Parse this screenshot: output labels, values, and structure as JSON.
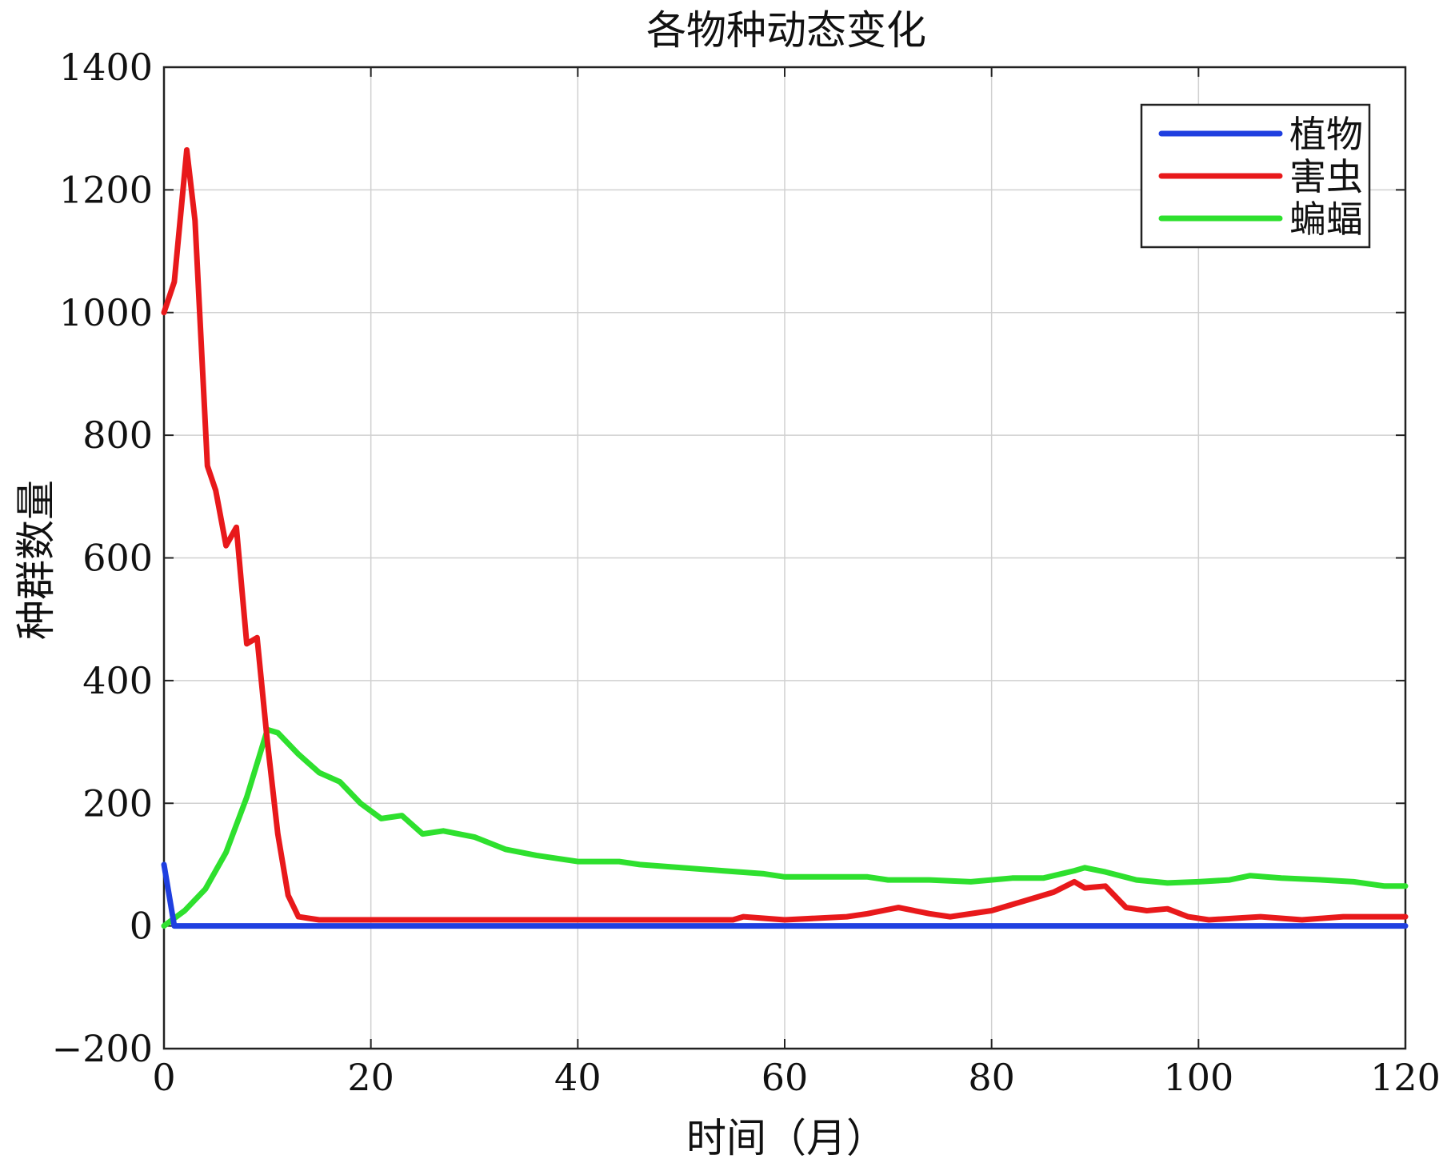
{
  "chart_data": {
    "type": "line",
    "title": "各物种动态变化",
    "xlabel": "时间（月）",
    "ylabel": "种群数量",
    "xlim": [
      0,
      120
    ],
    "ylim": [
      -200,
      1400
    ],
    "xticks": [
      0,
      20,
      40,
      60,
      80,
      100,
      120
    ],
    "yticks": [
      -200,
      0,
      200,
      400,
      600,
      800,
      1000,
      1200,
      1400
    ],
    "xtick_labels": [
      "0",
      "20",
      "40",
      "60",
      "80",
      "100",
      "120"
    ],
    "ytick_labels": [
      "−200",
      "0",
      "200",
      "400",
      "600",
      "800",
      "1000",
      "1200",
      "1400"
    ],
    "grid": true,
    "legend_position": "top-right",
    "series": [
      {
        "name": "植物",
        "color": "#1f3fe0",
        "points": [
          [
            0,
            100
          ],
          [
            1,
            0
          ],
          [
            120,
            0
          ]
        ]
      },
      {
        "name": "害虫",
        "color": "#e8191b",
        "points": [
          [
            0,
            1000
          ],
          [
            1,
            1050
          ],
          [
            2.2,
            1265
          ],
          [
            3,
            1150
          ],
          [
            4.2,
            750
          ],
          [
            5,
            710
          ],
          [
            6,
            620
          ],
          [
            7,
            650
          ],
          [
            8,
            460
          ],
          [
            9,
            470
          ],
          [
            10,
            300
          ],
          [
            11,
            150
          ],
          [
            12,
            50
          ],
          [
            13,
            15
          ],
          [
            15,
            10
          ],
          [
            30,
            10
          ],
          [
            55,
            10
          ],
          [
            56,
            15
          ],
          [
            60,
            10
          ],
          [
            66,
            15
          ],
          [
            68,
            20
          ],
          [
            71,
            30
          ],
          [
            74,
            20
          ],
          [
            76,
            15
          ],
          [
            80,
            25
          ],
          [
            84,
            45
          ],
          [
            86,
            55
          ],
          [
            88,
            72
          ],
          [
            89,
            62
          ],
          [
            91,
            65
          ],
          [
            93,
            30
          ],
          [
            95,
            25
          ],
          [
            97,
            28
          ],
          [
            99,
            15
          ],
          [
            101,
            10
          ],
          [
            106,
            15
          ],
          [
            110,
            10
          ],
          [
            114,
            15
          ],
          [
            120,
            15
          ]
        ]
      },
      {
        "name": "蝙蝠",
        "color": "#2ee02e",
        "points": [
          [
            0,
            0
          ],
          [
            2,
            25
          ],
          [
            4,
            60
          ],
          [
            6,
            120
          ],
          [
            8,
            210
          ],
          [
            10,
            320
          ],
          [
            11,
            315
          ],
          [
            13,
            280
          ],
          [
            15,
            250
          ],
          [
            17,
            235
          ],
          [
            19,
            200
          ],
          [
            21,
            175
          ],
          [
            23,
            180
          ],
          [
            25,
            150
          ],
          [
            27,
            155
          ],
          [
            30,
            145
          ],
          [
            33,
            125
          ],
          [
            36,
            115
          ],
          [
            40,
            105
          ],
          [
            44,
            105
          ],
          [
            46,
            100
          ],
          [
            50,
            95
          ],
          [
            54,
            90
          ],
          [
            58,
            85
          ],
          [
            60,
            80
          ],
          [
            64,
            80
          ],
          [
            68,
            80
          ],
          [
            70,
            75
          ],
          [
            74,
            75
          ],
          [
            78,
            72
          ],
          [
            82,
            78
          ],
          [
            85,
            78
          ],
          [
            88,
            90
          ],
          [
            89,
            95
          ],
          [
            91,
            88
          ],
          [
            94,
            75
          ],
          [
            97,
            70
          ],
          [
            100,
            72
          ],
          [
            103,
            75
          ],
          [
            105,
            82
          ],
          [
            108,
            78
          ],
          [
            112,
            75
          ],
          [
            115,
            72
          ],
          [
            118,
            65
          ],
          [
            120,
            65
          ]
        ]
      }
    ]
  }
}
